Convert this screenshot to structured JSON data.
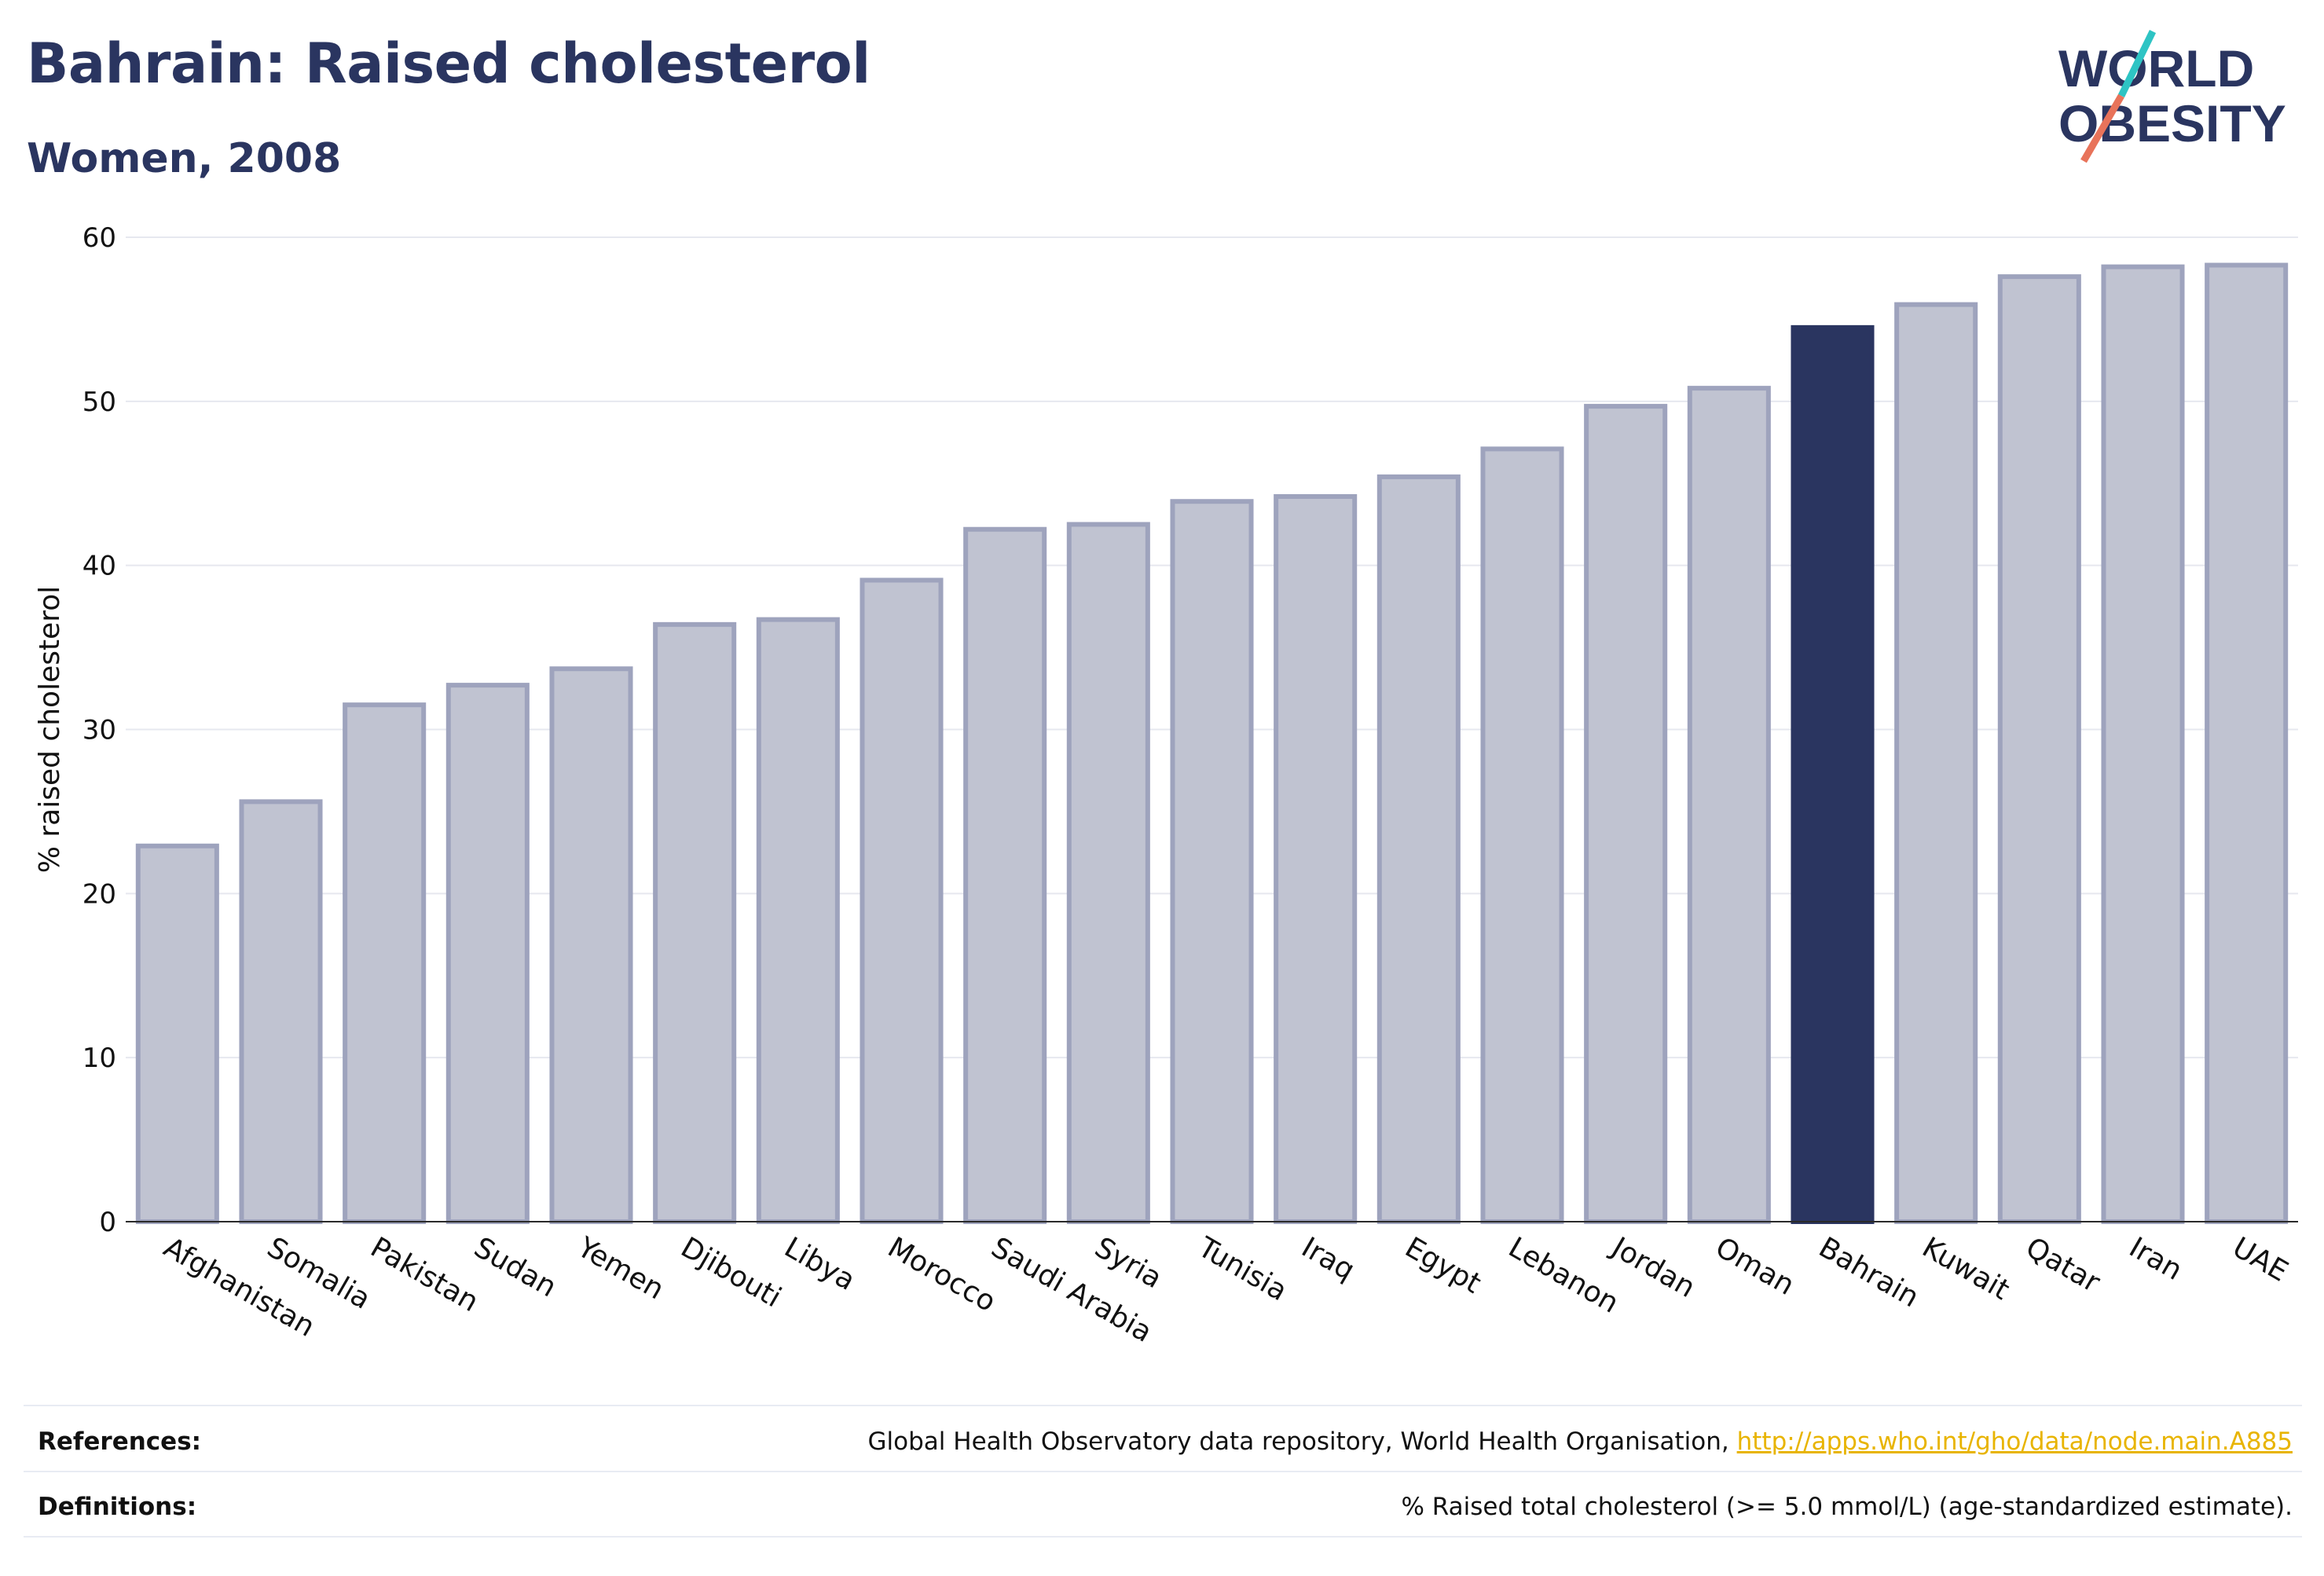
{
  "header": {
    "title": "Bahrain: Raised cholesterol",
    "subtitle": "Women, 2008"
  },
  "logo": {
    "line1": "WORLD",
    "line2": "OBESITY",
    "colors": {
      "text": "#2a3560",
      "slash_top": "#2ec4c4",
      "slash_bottom": "#e8735a"
    }
  },
  "chart_data": {
    "type": "bar",
    "ylabel": "% raised cholesterol",
    "ylim": [
      0,
      60
    ],
    "yticks": [
      0,
      10,
      20,
      30,
      40,
      50,
      60
    ],
    "grid": true,
    "highlight": "Bahrain",
    "colors": {
      "bar": "#c0c3d1",
      "bar_edge": "#9ea3bd",
      "highlight": "#2a3560",
      "grid": "#e6e8ef"
    },
    "categories": [
      "Afghanistan",
      "Somalia",
      "Pakistan",
      "Sudan",
      "Yemen",
      "Djibouti",
      "Libya",
      "Morocco",
      "Saudi Arabia",
      "Syria",
      "Tunisia",
      "Iraq",
      "Egypt",
      "Lebanon",
      "Jordan",
      "Oman",
      "Bahrain",
      "Kuwait",
      "Qatar",
      "Iran",
      "UAE"
    ],
    "values": [
      22.9,
      25.6,
      31.5,
      32.7,
      33.7,
      36.4,
      36.7,
      39.1,
      42.2,
      42.5,
      43.9,
      44.2,
      45.4,
      47.1,
      49.7,
      50.8,
      54.5,
      55.9,
      57.6,
      58.2,
      58.3
    ]
  },
  "footer": {
    "references_label": "References:",
    "references_text": "Global Health Observatory data repository, World Health Organisation, ",
    "references_link": "http://apps.who.int/gho/data/node.main.A885",
    "definitions_label": "Definitions:",
    "definitions_text": "% Raised total cholesterol (>= 5.0 mmol/L) (age-standardized estimate)."
  }
}
